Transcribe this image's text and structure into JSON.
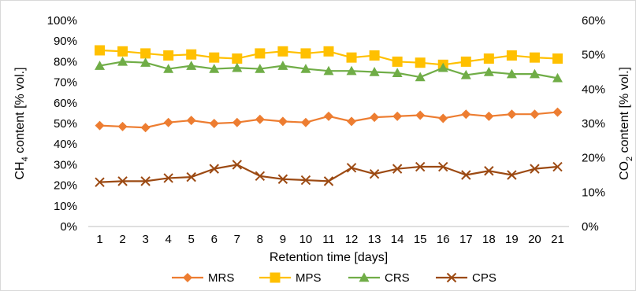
{
  "chart_data": {
    "type": "line",
    "x": [
      1,
      2,
      3,
      4,
      5,
      6,
      7,
      8,
      9,
      10,
      11,
      12,
      13,
      14,
      15,
      16,
      17,
      18,
      19,
      20,
      21
    ],
    "xlabel": "Retention time [days]",
    "ylabel_left": {
      "prefix": "CH",
      "sub": "4",
      "suffix": " content [% vol.]"
    },
    "ylabel_right": {
      "prefix": "CO",
      "sub": "2",
      "suffix": " content [% vol.]"
    },
    "ylim_left": [
      0,
      100
    ],
    "ylim_right": [
      0,
      60
    ],
    "yticks_left": [
      "0%",
      "10%",
      "20%",
      "30%",
      "40%",
      "50%",
      "60%",
      "70%",
      "80%",
      "90%",
      "100%"
    ],
    "yticks_right": [
      "0%",
      "10%",
      "20%",
      "30%",
      "40%",
      "50%",
      "60%"
    ],
    "xticks": [
      "1",
      "2",
      "3",
      "4",
      "5",
      "6",
      "7",
      "8",
      "9",
      "10",
      "11",
      "12",
      "13",
      "14",
      "15",
      "16",
      "17",
      "18",
      "19",
      "20",
      "21"
    ],
    "grid": false,
    "legend_position": "bottom",
    "series": [
      {
        "name": "MRS",
        "axis": "left",
        "marker": "diamond",
        "color": "#ED7D31",
        "values": [
          49,
          48.5,
          48,
          50.5,
          51.5,
          50,
          50.5,
          52,
          51,
          50.5,
          53.5,
          51,
          53,
          53.5,
          54,
          52.5,
          54.5,
          53.5,
          54.5,
          54.5,
          55.5
        ]
      },
      {
        "name": "MPS",
        "axis": "left",
        "marker": "square",
        "color": "#FFC000",
        "values": [
          85.5,
          85,
          84,
          83,
          83.5,
          82,
          81.5,
          84,
          85,
          84,
          85,
          82,
          83,
          80,
          79.5,
          78.5,
          80,
          81.5,
          83,
          82,
          81.5
        ]
      },
      {
        "name": "CRS",
        "axis": "left",
        "marker": "triangle",
        "color": "#70AD47",
        "values": [
          78,
          80,
          79.5,
          76.5,
          78,
          76.5,
          77,
          76.5,
          78,
          76.5,
          75.5,
          75.5,
          75,
          74.5,
          72.5,
          77,
          73.5,
          75,
          74,
          74,
          72
        ]
      },
      {
        "name": "CPS",
        "axis": "left",
        "marker": "x",
        "color": "#9C4A13",
        "values": [
          21.5,
          22,
          22,
          23.5,
          24,
          28,
          30,
          24.5,
          23,
          22.5,
          22,
          28.5,
          25.5,
          28,
          29,
          29,
          25,
          27,
          25,
          28,
          29
        ]
      }
    ]
  }
}
